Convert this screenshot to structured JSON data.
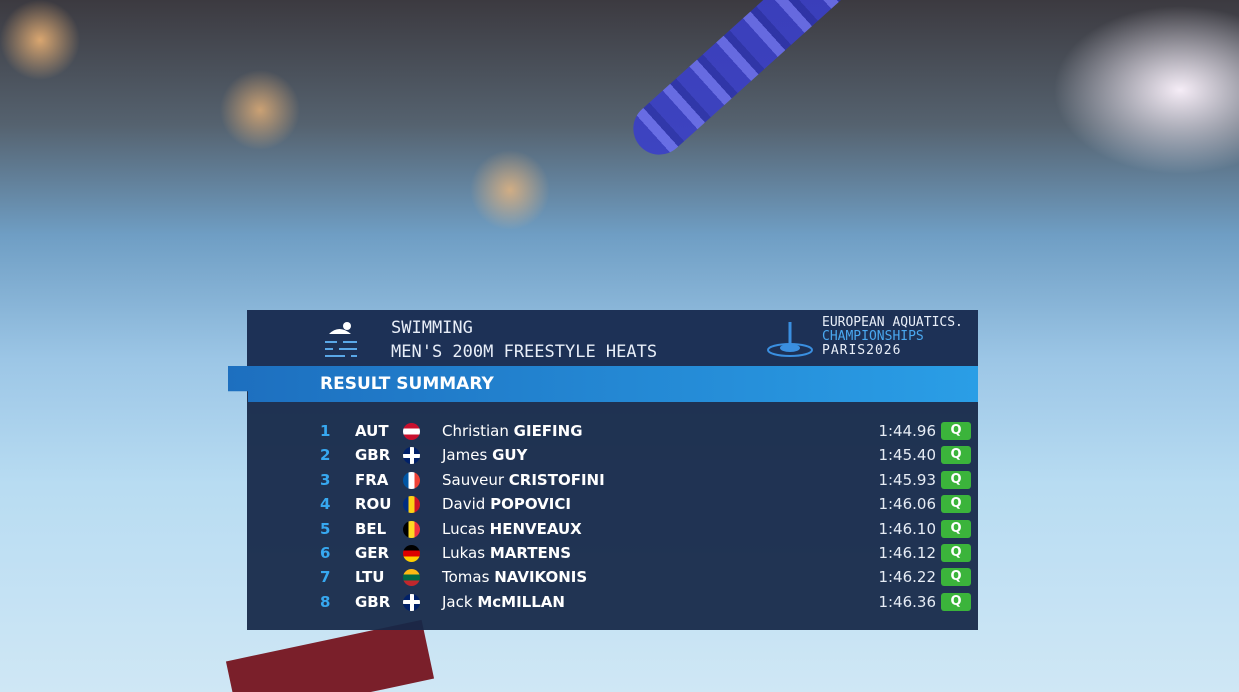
{
  "header": {
    "sport": "SWIMMING",
    "event": "MEN'S 200M FREESTYLE HEATS",
    "logo": [
      "EUROPEAN AQUATICS.",
      "CHAMPIONSHIPS",
      "PARIS2026"
    ]
  },
  "table": {
    "title": "RESULT SUMMARY",
    "rows": [
      {
        "rank": 1,
        "country": "AUT",
        "first": "Christian",
        "last": "GIEFING",
        "time": "1:44.96",
        "status": "Q"
      },
      {
        "rank": 2,
        "country": "GBR",
        "first": "James",
        "last": "GUY",
        "time": "1:45.40",
        "status": "Q"
      },
      {
        "rank": 3,
        "country": "FRA",
        "first": "Sauveur",
        "last": "CRISTOFINI",
        "time": "1:45.93",
        "status": "Q"
      },
      {
        "rank": 4,
        "country": "ROU",
        "first": "David",
        "last": "POPOVICI",
        "time": "1:46.06",
        "status": "Q"
      },
      {
        "rank": 5,
        "country": "BEL",
        "first": "Lucas",
        "last": "HENVEAUX",
        "time": "1:46.10",
        "status": "Q"
      },
      {
        "rank": 6,
        "country": "GER",
        "first": "Lukas",
        "last": "MARTENS",
        "time": "1:46.12",
        "status": "Q"
      },
      {
        "rank": 7,
        "country": "LTU",
        "first": "Tomas",
        "last": "NAVIKONIS",
        "time": "1:46.22",
        "status": "Q"
      },
      {
        "rank": 8,
        "country": "GBR",
        "first": "Jack",
        "last": "McMILLAN",
        "time": "1:46.36",
        "status": "Q"
      }
    ]
  }
}
